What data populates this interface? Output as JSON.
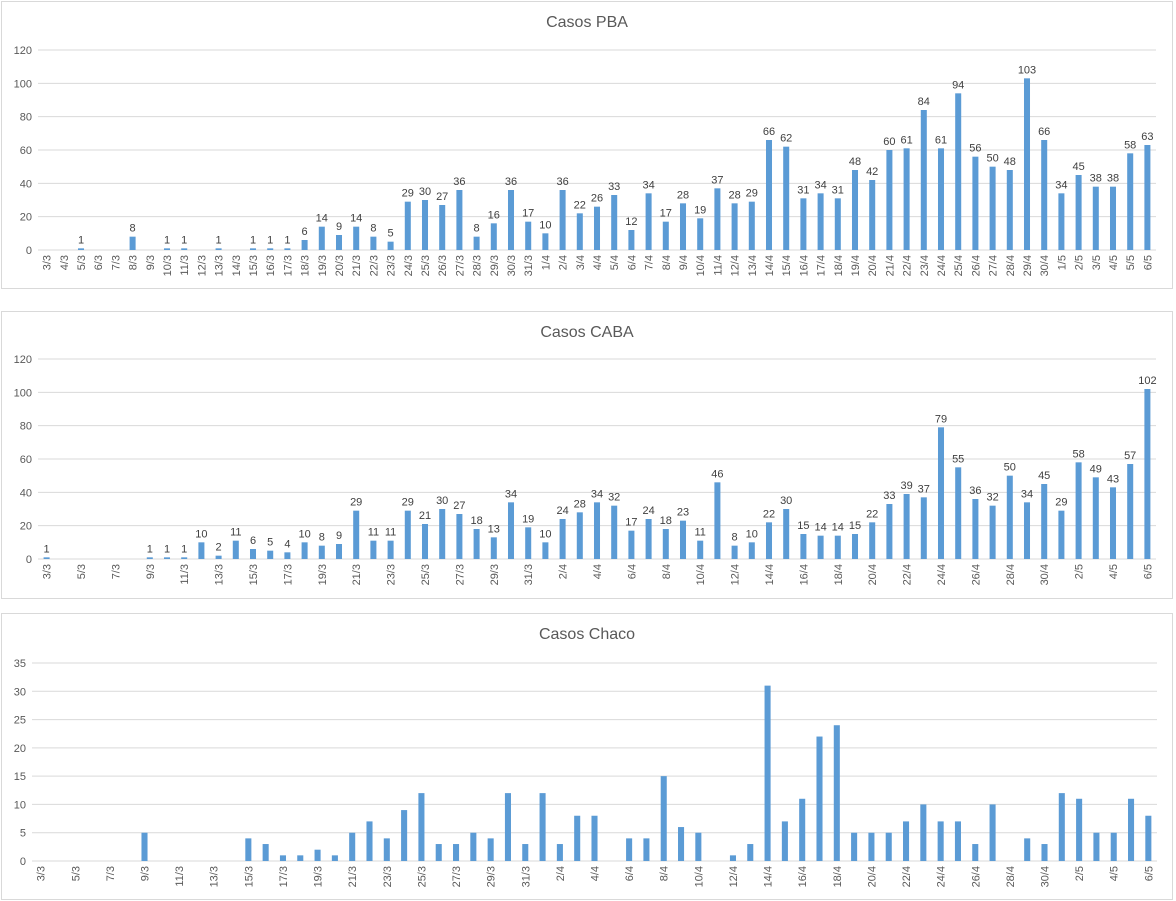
{
  "colors": {
    "bar": "#5b9bd5",
    "grid": "#d9d9d9",
    "axis_text": "#595959",
    "label_text": "#404040"
  },
  "chart_data": [
    {
      "type": "bar",
      "title": "Casos PBA",
      "ylim": [
        0,
        120
      ],
      "yticks": [
        0,
        20,
        40,
        60,
        80,
        100,
        120
      ],
      "grid": true,
      "show_data_labels": true,
      "categories": [
        "3/3",
        "4/3",
        "5/3",
        "6/3",
        "7/3",
        "8/3",
        "9/3",
        "10/3",
        "11/3",
        "12/3",
        "13/3",
        "14/3",
        "15/3",
        "16/3",
        "17/3",
        "18/3",
        "19/3",
        "20/3",
        "21/3",
        "22/3",
        "23/3",
        "24/3",
        "25/3",
        "26/3",
        "27/3",
        "28/3",
        "29/3",
        "30/3",
        "31/3",
        "1/4",
        "2/4",
        "3/4",
        "4/4",
        "5/4",
        "6/4",
        "7/4",
        "8/4",
        "9/4",
        "10/4",
        "11/4",
        "12/4",
        "13/4",
        "14/4",
        "15/4",
        "16/4",
        "17/4",
        "18/4",
        "19/4",
        "20/4",
        "21/4",
        "22/4",
        "23/4",
        "24/4",
        "25/4",
        "26/4",
        "27/4",
        "28/4",
        "29/4",
        "30/4",
        "1/5",
        "2/5",
        "3/5",
        "4/5",
        "5/5",
        "6/5"
      ],
      "values": [
        0,
        0,
        1,
        0,
        0,
        8,
        0,
        1,
        1,
        0,
        1,
        0,
        1,
        1,
        1,
        6,
        14,
        9,
        14,
        8,
        5,
        29,
        30,
        27,
        36,
        8,
        16,
        36,
        17,
        10,
        36,
        22,
        26,
        33,
        12,
        34,
        17,
        28,
        19,
        37,
        28,
        29,
        66,
        62,
        31,
        34,
        31,
        48,
        42,
        60,
        61,
        84,
        61,
        94,
        56,
        50,
        48,
        103,
        66,
        34,
        45,
        38,
        38,
        58,
        63
      ]
    },
    {
      "type": "bar",
      "title": "Casos CABA",
      "ylim": [
        0,
        120
      ],
      "yticks": [
        0,
        20,
        40,
        60,
        80,
        100,
        120
      ],
      "grid": true,
      "show_data_labels": true,
      "categories": [
        "3/3",
        "4/3",
        "5/3",
        "6/3",
        "7/3",
        "8/3",
        "9/3",
        "10/3",
        "11/3",
        "12/3",
        "13/3",
        "14/3",
        "15/3",
        "16/3",
        "17/3",
        "18/3",
        "19/3",
        "20/3",
        "21/3",
        "22/3",
        "23/3",
        "24/3",
        "25/3",
        "26/3",
        "27/3",
        "28/3",
        "29/3",
        "30/3",
        "31/3",
        "1/4",
        "2/4",
        "3/4",
        "4/4",
        "5/4",
        "6/4",
        "7/4",
        "8/4",
        "9/4",
        "10/4",
        "11/4",
        "12/4",
        "13/4",
        "14/4",
        "15/4",
        "16/4",
        "17/4",
        "18/4",
        "19/4",
        "20/4",
        "21/4",
        "22/4",
        "23/4",
        "24/4",
        "25/4",
        "26/4",
        "27/4",
        "28/4",
        "29/4",
        "30/4",
        "1/5",
        "2/5",
        "3/5",
        "4/5",
        "5/5",
        "6/5"
      ],
      "tick_label_every": 2,
      "values": [
        1,
        0,
        0,
        0,
        0,
        0,
        1,
        1,
        1,
        10,
        2,
        11,
        6,
        5,
        4,
        10,
        8,
        9,
        29,
        11,
        11,
        29,
        21,
        30,
        27,
        18,
        13,
        34,
        19,
        10,
        24,
        28,
        34,
        32,
        17,
        24,
        18,
        23,
        11,
        46,
        8,
        10,
        22,
        30,
        15,
        14,
        14,
        15,
        22,
        33,
        39,
        37,
        79,
        55,
        36,
        32,
        50,
        34,
        45,
        29,
        58,
        49,
        43,
        57,
        102
      ]
    },
    {
      "type": "bar",
      "title": "Casos Chaco",
      "ylim": [
        0,
        35
      ],
      "yticks": [
        0,
        5,
        10,
        15,
        20,
        25,
        30,
        35
      ],
      "grid": true,
      "show_data_labels": false,
      "categories": [
        "3/3",
        "4/3",
        "5/3",
        "6/3",
        "7/3",
        "8/3",
        "9/3",
        "10/3",
        "11/3",
        "12/3",
        "13/3",
        "14/3",
        "15/3",
        "16/3",
        "17/3",
        "18/3",
        "19/3",
        "20/3",
        "21/3",
        "22/3",
        "23/3",
        "24/3",
        "25/3",
        "26/3",
        "27/3",
        "28/3",
        "29/3",
        "30/3",
        "31/3",
        "1/4",
        "2/4",
        "3/4",
        "4/4",
        "5/4",
        "6/4",
        "7/4",
        "8/4",
        "9/4",
        "10/4",
        "11/4",
        "12/4",
        "13/4",
        "14/4",
        "15/4",
        "16/4",
        "17/4",
        "18/4",
        "19/4",
        "20/4",
        "21/4",
        "22/4",
        "23/4",
        "24/4",
        "25/4",
        "26/4",
        "27/4",
        "28/4",
        "29/4",
        "30/4",
        "1/5",
        "2/5",
        "3/5",
        "4/5",
        "5/5",
        "6/5"
      ],
      "tick_label_every": 2,
      "values": [
        0,
        0,
        0,
        0,
        0,
        0,
        5,
        0,
        0,
        0,
        0,
        0,
        4,
        3,
        1,
        1,
        2,
        1,
        5,
        7,
        4,
        9,
        12,
        3,
        3,
        5,
        4,
        12,
        3,
        12,
        3,
        8,
        8,
        0,
        4,
        4,
        15,
        6,
        5,
        0,
        1,
        3,
        31,
        7,
        11,
        22,
        24,
        5,
        5,
        5,
        7,
        10,
        7,
        7,
        3,
        10,
        0,
        4,
        3,
        12,
        11,
        5,
        5,
        11,
        8
      ]
    }
  ]
}
